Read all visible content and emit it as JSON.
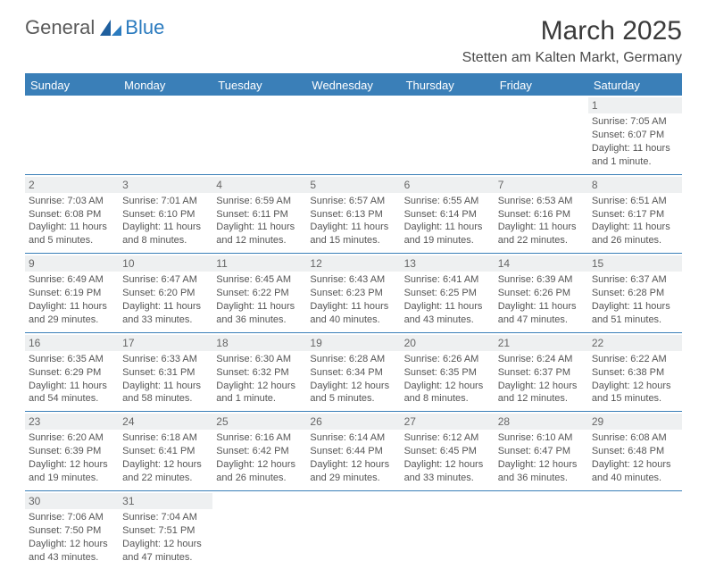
{
  "logo": {
    "text1": "General",
    "text2": "Blue"
  },
  "title": "March 2025",
  "location": "Stetten am Kalten Markt, Germany",
  "colors": {
    "header_bg": "#3a7fb8",
    "header_text": "#ffffff",
    "border": "#3a7fb8",
    "daynum_bg": "#eef0f1",
    "body_text": "#555555",
    "logo_accent": "#2b7bbf"
  },
  "typography": {
    "title_fontsize": 30,
    "location_fontsize": 16,
    "dayheader_fontsize": 13,
    "cell_fontsize": 11
  },
  "layout": {
    "columns": 7,
    "rows": 6,
    "first_day_column": 6
  },
  "day_headers": [
    "Sunday",
    "Monday",
    "Tuesday",
    "Wednesday",
    "Thursday",
    "Friday",
    "Saturday"
  ],
  "days": [
    {
      "n": 1,
      "sunrise": "7:05 AM",
      "sunset": "6:07 PM",
      "daylight": "11 hours and 1 minute."
    },
    {
      "n": 2,
      "sunrise": "7:03 AM",
      "sunset": "6:08 PM",
      "daylight": "11 hours and 5 minutes."
    },
    {
      "n": 3,
      "sunrise": "7:01 AM",
      "sunset": "6:10 PM",
      "daylight": "11 hours and 8 minutes."
    },
    {
      "n": 4,
      "sunrise": "6:59 AM",
      "sunset": "6:11 PM",
      "daylight": "11 hours and 12 minutes."
    },
    {
      "n": 5,
      "sunrise": "6:57 AM",
      "sunset": "6:13 PM",
      "daylight": "11 hours and 15 minutes."
    },
    {
      "n": 6,
      "sunrise": "6:55 AM",
      "sunset": "6:14 PM",
      "daylight": "11 hours and 19 minutes."
    },
    {
      "n": 7,
      "sunrise": "6:53 AM",
      "sunset": "6:16 PM",
      "daylight": "11 hours and 22 minutes."
    },
    {
      "n": 8,
      "sunrise": "6:51 AM",
      "sunset": "6:17 PM",
      "daylight": "11 hours and 26 minutes."
    },
    {
      "n": 9,
      "sunrise": "6:49 AM",
      "sunset": "6:19 PM",
      "daylight": "11 hours and 29 minutes."
    },
    {
      "n": 10,
      "sunrise": "6:47 AM",
      "sunset": "6:20 PM",
      "daylight": "11 hours and 33 minutes."
    },
    {
      "n": 11,
      "sunrise": "6:45 AM",
      "sunset": "6:22 PM",
      "daylight": "11 hours and 36 minutes."
    },
    {
      "n": 12,
      "sunrise": "6:43 AM",
      "sunset": "6:23 PM",
      "daylight": "11 hours and 40 minutes."
    },
    {
      "n": 13,
      "sunrise": "6:41 AM",
      "sunset": "6:25 PM",
      "daylight": "11 hours and 43 minutes."
    },
    {
      "n": 14,
      "sunrise": "6:39 AM",
      "sunset": "6:26 PM",
      "daylight": "11 hours and 47 minutes."
    },
    {
      "n": 15,
      "sunrise": "6:37 AM",
      "sunset": "6:28 PM",
      "daylight": "11 hours and 51 minutes."
    },
    {
      "n": 16,
      "sunrise": "6:35 AM",
      "sunset": "6:29 PM",
      "daylight": "11 hours and 54 minutes."
    },
    {
      "n": 17,
      "sunrise": "6:33 AM",
      "sunset": "6:31 PM",
      "daylight": "11 hours and 58 minutes."
    },
    {
      "n": 18,
      "sunrise": "6:30 AM",
      "sunset": "6:32 PM",
      "daylight": "12 hours and 1 minute."
    },
    {
      "n": 19,
      "sunrise": "6:28 AM",
      "sunset": "6:34 PM",
      "daylight": "12 hours and 5 minutes."
    },
    {
      "n": 20,
      "sunrise": "6:26 AM",
      "sunset": "6:35 PM",
      "daylight": "12 hours and 8 minutes."
    },
    {
      "n": 21,
      "sunrise": "6:24 AM",
      "sunset": "6:37 PM",
      "daylight": "12 hours and 12 minutes."
    },
    {
      "n": 22,
      "sunrise": "6:22 AM",
      "sunset": "6:38 PM",
      "daylight": "12 hours and 15 minutes."
    },
    {
      "n": 23,
      "sunrise": "6:20 AM",
      "sunset": "6:39 PM",
      "daylight": "12 hours and 19 minutes."
    },
    {
      "n": 24,
      "sunrise": "6:18 AM",
      "sunset": "6:41 PM",
      "daylight": "12 hours and 22 minutes."
    },
    {
      "n": 25,
      "sunrise": "6:16 AM",
      "sunset": "6:42 PM",
      "daylight": "12 hours and 26 minutes."
    },
    {
      "n": 26,
      "sunrise": "6:14 AM",
      "sunset": "6:44 PM",
      "daylight": "12 hours and 29 minutes."
    },
    {
      "n": 27,
      "sunrise": "6:12 AM",
      "sunset": "6:45 PM",
      "daylight": "12 hours and 33 minutes."
    },
    {
      "n": 28,
      "sunrise": "6:10 AM",
      "sunset": "6:47 PM",
      "daylight": "12 hours and 36 minutes."
    },
    {
      "n": 29,
      "sunrise": "6:08 AM",
      "sunset": "6:48 PM",
      "daylight": "12 hours and 40 minutes."
    },
    {
      "n": 30,
      "sunrise": "7:06 AM",
      "sunset": "7:50 PM",
      "daylight": "12 hours and 43 minutes."
    },
    {
      "n": 31,
      "sunrise": "7:04 AM",
      "sunset": "7:51 PM",
      "daylight": "12 hours and 47 minutes."
    }
  ],
  "labels": {
    "sunrise": "Sunrise:",
    "sunset": "Sunset:",
    "daylight": "Daylight:"
  }
}
